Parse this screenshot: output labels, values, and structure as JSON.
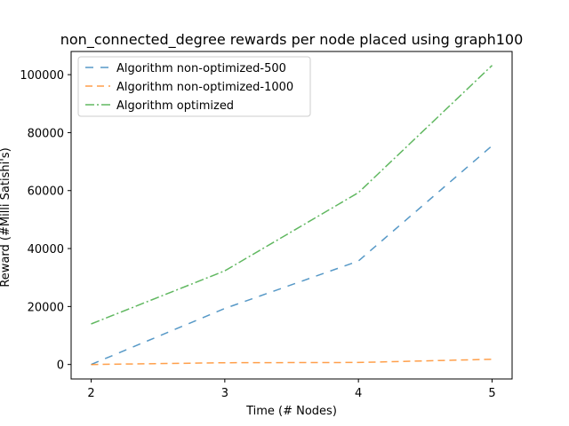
{
  "chart_data": {
    "type": "line",
    "title": "non_connected_degree rewards per node placed using graph100",
    "xlabel": "Time (# Nodes)",
    "ylabel": "Reward (#Milli Satishi's)",
    "x": [
      2,
      3,
      4,
      5
    ],
    "xlim": [
      1.85,
      5.15
    ],
    "ylim": [
      -5000,
      108000
    ],
    "xticks": [
      2,
      3,
      4,
      5
    ],
    "yticks": [
      0,
      20000,
      40000,
      60000,
      80000,
      100000
    ],
    "grid": false,
    "legend_position": "top-left",
    "series": [
      {
        "name": "Algorithm non-optimized-500",
        "values": [
          0,
          19300,
          35700,
          75500
        ],
        "color": "#1f77b4",
        "linestyle": "loosely-dashed"
      },
      {
        "name": "Algorithm non-optimized-1000",
        "values": [
          0,
          600,
          700,
          1800
        ],
        "color": "#ff7f0e",
        "linestyle": "dashed"
      },
      {
        "name": "Algorithm optimized",
        "values": [
          14000,
          32300,
          59300,
          103200
        ],
        "color": "#2ca02c",
        "linestyle": "dash-dot"
      }
    ]
  }
}
